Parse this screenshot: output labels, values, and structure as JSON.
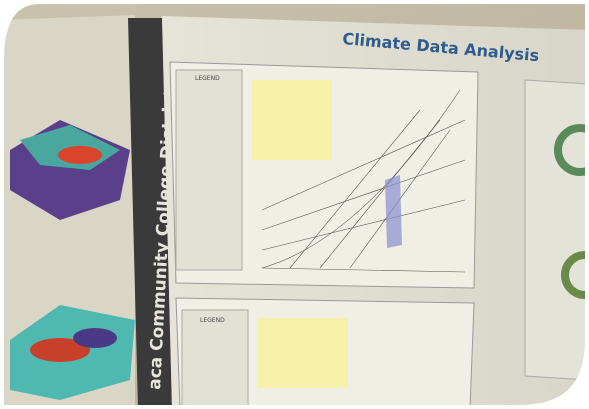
{
  "poster": {
    "title": "Climate Data Analysis",
    "side_banner": "aca Community College District",
    "panels": [
      {
        "legend": "LEGEND"
      },
      {
        "legend": "LEGEND"
      }
    ]
  }
}
